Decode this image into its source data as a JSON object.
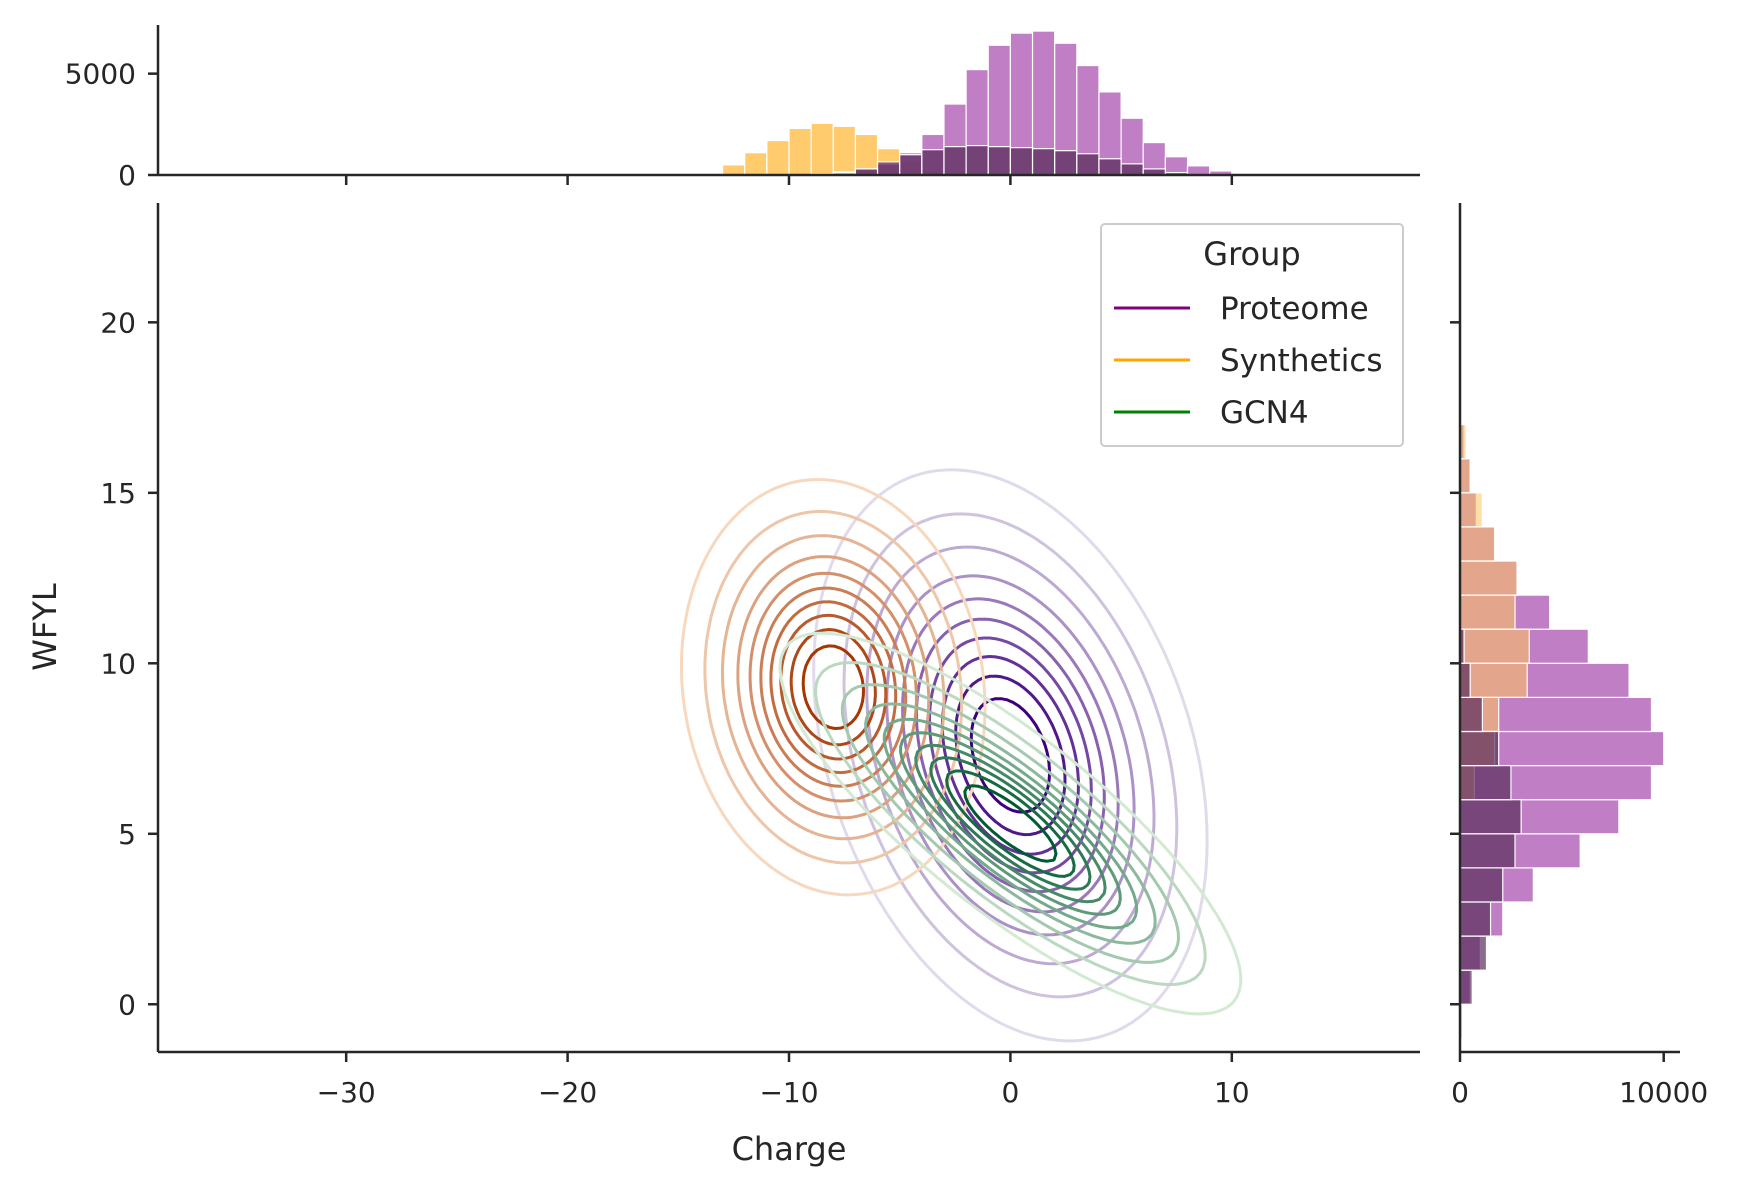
{
  "colors": {
    "proteome": "#800080",
    "synthetics": "#ffa500",
    "gcn4": "#008000",
    "proteome_hist": "#b05fb5",
    "synthetics_hist": "#ffc55c",
    "gcn4_hist": "#5b2e5e",
    "axis": "#262626"
  },
  "chart_data": {
    "type": "jointplot-kde",
    "xlabel": "Charge",
    "ylabel": "WFYL",
    "xlim": [
      -38.5,
      18.5
    ],
    "ylim": [
      -1.4,
      23.5
    ],
    "xticks": [
      -30,
      -20,
      -10,
      0,
      10
    ],
    "xtick_labels": [
      "−30",
      "−20",
      "−10",
      "0",
      "10"
    ],
    "yticks": [
      0,
      5,
      10,
      15,
      20
    ],
    "ytick_labels": [
      "0",
      "5",
      "10",
      "15",
      "20"
    ],
    "legend": {
      "title": "Group",
      "position": "upper-right",
      "entries": [
        {
          "label": "Proteome",
          "color": "#800080"
        },
        {
          "label": "Synthetics",
          "color": "#ffa500"
        },
        {
          "label": "GCN4",
          "color": "#008000"
        }
      ]
    },
    "kde_series": [
      {
        "name": "Proteome",
        "cmap": "Purples",
        "center": [
          0,
          7.3
        ],
        "sigma": [
          3.5,
          3.3
        ],
        "rho": -0.3
      },
      {
        "name": "Synthetics",
        "cmap": "Oranges",
        "center": [
          -8,
          9.3
        ],
        "sigma": [
          2.7,
          2.4
        ],
        "rho": -0.1
      },
      {
        "name": "GCN4",
        "cmap": "Greens",
        "center": [
          0,
          5.3
        ],
        "sigma": [
          4.1,
          2.2
        ],
        "rho": -0.82
      }
    ],
    "top_hist": {
      "ylabel_ticks": [
        0,
        5000
      ],
      "ylim": [
        0,
        7400
      ],
      "bin_width": 1,
      "series": [
        {
          "name": "Synthetics",
          "bins_start": -13,
          "counts": [
            500,
            1100,
            1700,
            2300,
            2550,
            2400,
            2000,
            1300,
            650,
            200,
            50
          ]
        },
        {
          "name": "Proteome",
          "bins_start": -9,
          "counts": [
            50,
            150,
            300,
            550,
            1100,
            2000,
            3500,
            5200,
            6400,
            7000,
            7100,
            6500,
            5400,
            4100,
            2800,
            1600,
            900,
            450,
            200,
            80,
            20
          ]
        },
        {
          "name": "GCN4",
          "bins_start": -8,
          "counts": [
            100,
            300,
            650,
            1000,
            1250,
            1400,
            1450,
            1400,
            1350,
            1300,
            1200,
            1050,
            800,
            550,
            300,
            120
          ]
        }
      ]
    },
    "right_hist": {
      "xlabel_ticks": [
        0,
        10000
      ],
      "xlim": [
        0,
        10800
      ],
      "bin_width": 1,
      "series": [
        {
          "name": "Proteome",
          "bins_start": -1,
          "counts": [
            100,
            500,
            1000,
            2100,
            3600,
            5900,
            7800,
            9400,
            10000,
            9400,
            8300,
            6300,
            4400,
            2800,
            1700,
            800,
            500,
            200
          ]
        },
        {
          "name": "Synthetics",
          "bins_start": 6,
          "counts": [
            700,
            1700,
            1900,
            3300,
            3400,
            2700,
            2800,
            1700,
            1100,
            500,
            300
          ]
        },
        {
          "name": "GCN4",
          "bins_start": 0,
          "counts": [
            600,
            1300,
            1500,
            2100,
            2700,
            3000,
            2500,
            1900,
            1100,
            500,
            200
          ]
        }
      ]
    }
  }
}
